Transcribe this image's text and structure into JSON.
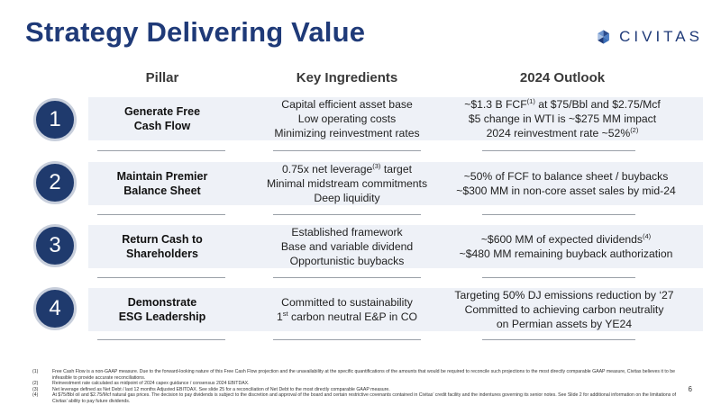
{
  "title": "Strategy Delivering Value",
  "logo": {
    "text": "CIVITAS",
    "icon": "civitas-logo-icon"
  },
  "headers": {
    "pillar": "Pillar",
    "ingredients": "Key Ingredients",
    "outlook": "2024 Outlook"
  },
  "rows": [
    {
      "number": "1",
      "pillar": [
        "Generate Free",
        "Cash Flow"
      ],
      "ingredients": [
        "Capital efficient asset base",
        "Low operating costs",
        "Minimizing reinvestment rates"
      ],
      "outlook": [
        {
          "pre": "~$1.3 B FCF",
          "sup": "(1)",
          "post": " at $75/Bbl and $2.75/Mcf"
        },
        {
          "pre": "$5 change in WTI is ~$275 MM impact",
          "sup": "",
          "post": ""
        },
        {
          "pre": "2024 reinvestment rate ~52%",
          "sup": "(2)",
          "post": ""
        }
      ]
    },
    {
      "number": "2",
      "pillar": [
        "Maintain Premier",
        "Balance Sheet"
      ],
      "ingredients_rich": [
        {
          "pre": "0.75x net leverage",
          "sup": "(3)",
          "post": " target"
        },
        {
          "pre": "Minimal midstream commitments",
          "sup": "",
          "post": ""
        },
        {
          "pre": "Deep liquidity",
          "sup": "",
          "post": ""
        }
      ],
      "outlook": [
        {
          "pre": "~50% of FCF to balance sheet / buybacks",
          "sup": "",
          "post": ""
        },
        {
          "pre": "~$300 MM in non-core asset sales by mid-24",
          "sup": "",
          "post": ""
        }
      ]
    },
    {
      "number": "3",
      "pillar": [
        "Return Cash to",
        "Shareholders"
      ],
      "ingredients": [
        "Established framework",
        "Base and variable dividend",
        "Opportunistic buybacks"
      ],
      "outlook": [
        {
          "pre": "~$600 MM of expected dividends",
          "sup": "(4)",
          "post": ""
        },
        {
          "pre": "~$480 MM remaining buyback authorization",
          "sup": "",
          "post": ""
        }
      ]
    },
    {
      "number": "4",
      "pillar": [
        "Demonstrate",
        "ESG Leadership"
      ],
      "ingredients_rich": [
        {
          "pre": "Committed to sustainability",
          "sup": "",
          "post": ""
        },
        {
          "pre": "1",
          "sup": "st",
          "post": " carbon neutral E&P in CO"
        }
      ],
      "outlook": [
        {
          "pre": "Targeting 50% DJ emissions reduction by ‘27",
          "sup": "",
          "post": ""
        },
        {
          "pre": "Committed to achieving carbon neutrality",
          "sup": "",
          "post": ""
        },
        {
          "pre": "on Permian assets by YE24",
          "sup": "",
          "post": ""
        }
      ]
    }
  ],
  "footnotes": [
    {
      "num": "(1)",
      "text": "Free Cash Flow is a non-GAAP measure. Due to the forward-looking nature of this Free Cash Flow projection and the unavailability at the specific quantifications of the amounts that would be required to reconcile such projections to the most directly comparable GAAP measure, Civitas believes it to be infeasible to provide accurate reconciliations."
    },
    {
      "num": "(2)",
      "text": "Reinvestment rate calculated as midpoint of 2024 capex guidance / consensus 2024 EBITDAX."
    },
    {
      "num": "(3)",
      "text": "Net leverage defined as Net Debt / last 12 months Adjusted EBITDAX. See slide 25 for a reconciliation of Net Debt to the most directly comparable GAAP measure."
    },
    {
      "num": "(4)",
      "text": "At $75/Bbl oil and $2.75/Mcf natural gas prices. The decision to pay dividends is subject to the discretion and approval of the board and certain restrictive covenants contained in Civitas’ credit facility and the indentures governing its senior notes. See Slide 2 for additional information on the limitations of Civitas’ ability to pay future dividends."
    }
  ],
  "page_number": "6"
}
